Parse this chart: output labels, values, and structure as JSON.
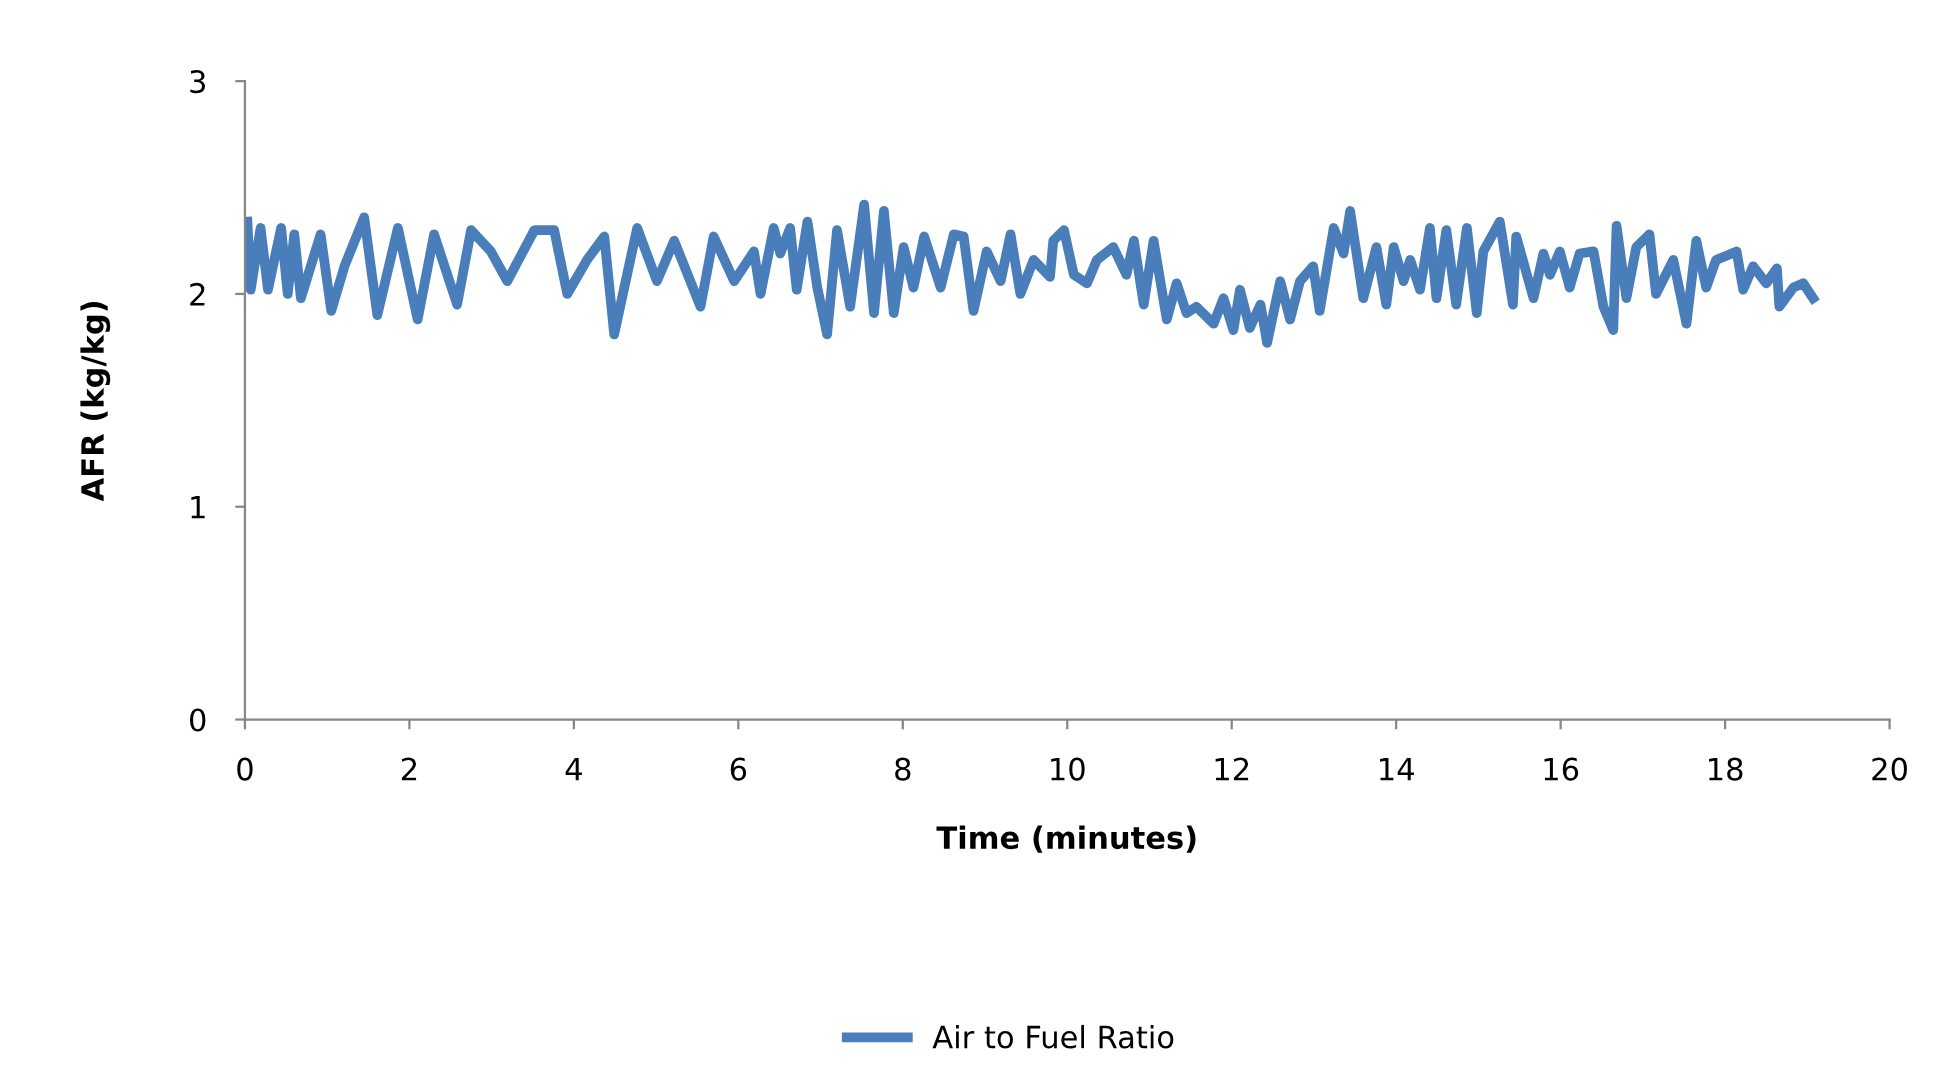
{
  "chart_data": {
    "type": "line",
    "xlabel": "Time (minutes)",
    "ylabel": "AFR (kg/kg)",
    "xlim": [
      0,
      20
    ],
    "xticks": [
      0,
      2,
      4,
      6,
      8,
      10,
      12,
      14,
      16,
      18,
      20
    ],
    "ylim": [
      0,
      3
    ],
    "yticks": [
      0,
      1,
      2,
      3
    ],
    "grid": false,
    "legend": "bottom",
    "marker": "none",
    "line_style": "solid",
    "series": [
      {
        "name": "Air to Fuel Ratio",
        "color": "#4a7ebb",
        "x": [
          0.03,
          0.07,
          0.19,
          0.28,
          0.44,
          0.52,
          0.6,
          0.68,
          0.92,
          1.05,
          1.21,
          1.45,
          1.61,
          1.86,
          2.1,
          2.3,
          2.58,
          2.75,
          2.99,
          3.19,
          3.52,
          3.76,
          3.92,
          4.16,
          4.37,
          4.49,
          4.77,
          5.01,
          5.22,
          5.54,
          5.7,
          5.95,
          6.19,
          6.27,
          6.43,
          6.51,
          6.63,
          6.71,
          6.84,
          6.96,
          7.08,
          7.2,
          7.36,
          7.53,
          7.65,
          7.77,
          7.89,
          8.01,
          8.13,
          8.26,
          8.46,
          8.62,
          8.74,
          8.86,
          9.02,
          9.19,
          9.31,
          9.43,
          9.59,
          9.79,
          9.83,
          9.96,
          10.08,
          10.24,
          10.36,
          10.56,
          10.72,
          10.81,
          10.93,
          11.05,
          11.21,
          11.33,
          11.45,
          11.57,
          11.78,
          11.9,
          12.02,
          12.1,
          12.22,
          12.35,
          12.43,
          12.59,
          12.71,
          12.83,
          12.99,
          13.07,
          13.24,
          13.36,
          13.44,
          13.6,
          13.76,
          13.88,
          13.97,
          14.09,
          14.17,
          14.29,
          14.41,
          14.49,
          14.61,
          14.73,
          14.86,
          14.98,
          15.06,
          15.26,
          15.42,
          15.46,
          15.67,
          15.79,
          15.87,
          15.99,
          16.11,
          16.23,
          16.4,
          16.52,
          16.64,
          16.68,
          16.8,
          16.92,
          17.08,
          17.16,
          17.37,
          17.53,
          17.65,
          17.77,
          17.89,
          18.14,
          18.22,
          18.34,
          18.5,
          18.63,
          18.66,
          18.83,
          18.95,
          19.07
        ],
        "values": [
          2.34,
          2.02,
          2.31,
          2.02,
          2.31,
          2.0,
          2.28,
          1.98,
          2.28,
          1.92,
          2.13,
          2.36,
          1.9,
          2.31,
          1.88,
          2.28,
          1.95,
          2.3,
          2.2,
          2.06,
          2.3,
          2.3,
          2.0,
          2.16,
          2.27,
          1.81,
          2.31,
          2.06,
          2.25,
          1.94,
          2.27,
          2.06,
          2.2,
          2.0,
          2.31,
          2.19,
          2.31,
          2.02,
          2.34,
          2.03,
          1.81,
          2.3,
          1.94,
          2.42,
          1.91,
          2.39,
          1.91,
          2.22,
          2.03,
          2.27,
          2.03,
          2.28,
          2.27,
          1.92,
          2.2,
          2.06,
          2.28,
          2.0,
          2.16,
          2.08,
          2.25,
          2.3,
          2.09,
          2.05,
          2.16,
          2.22,
          2.09,
          2.25,
          1.95,
          2.25,
          1.88,
          2.05,
          1.91,
          1.94,
          1.86,
          1.98,
          1.83,
          2.02,
          1.84,
          1.95,
          1.77,
          2.06,
          1.88,
          2.06,
          2.13,
          1.92,
          2.31,
          2.19,
          2.39,
          1.98,
          2.22,
          1.95,
          2.22,
          2.06,
          2.16,
          2.02,
          2.31,
          1.98,
          2.3,
          1.95,
          2.31,
          1.91,
          2.2,
          2.34,
          1.95,
          2.27,
          1.98,
          2.19,
          2.09,
          2.2,
          2.03,
          2.19,
          2.2,
          1.94,
          1.83,
          2.32,
          1.98,
          2.22,
          2.28,
          2.0,
          2.16,
          1.86,
          2.25,
          2.03,
          2.16,
          2.2,
          2.02,
          2.13,
          2.05,
          2.12,
          1.94,
          2.03,
          2.05,
          1.98
        ]
      }
    ]
  }
}
